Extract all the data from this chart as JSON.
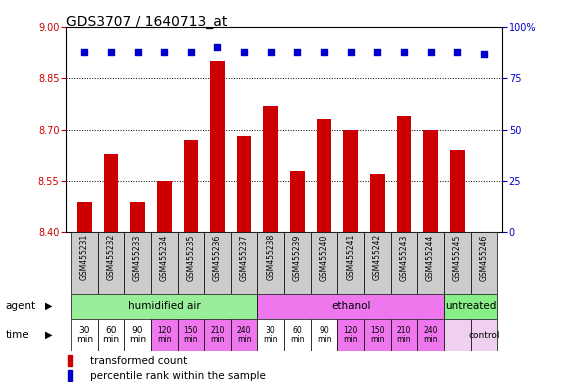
{
  "title": "GDS3707 / 1640713_at",
  "samples": [
    "GSM455231",
    "GSM455232",
    "GSM455233",
    "GSM455234",
    "GSM455235",
    "GSM455236",
    "GSM455237",
    "GSM455238",
    "GSM455239",
    "GSM455240",
    "GSM455241",
    "GSM455242",
    "GSM455243",
    "GSM455244",
    "GSM455245",
    "GSM455246"
  ],
  "bar_values": [
    8.49,
    8.63,
    8.49,
    8.55,
    8.67,
    8.9,
    8.68,
    8.77,
    8.58,
    8.73,
    8.7,
    8.57,
    8.74,
    8.7,
    8.64,
    8.4
  ],
  "percentile_values": [
    88,
    88,
    88,
    88,
    88,
    90,
    88,
    88,
    88,
    88,
    88,
    88,
    88,
    88,
    88,
    87
  ],
  "ylim": [
    8.4,
    9.0
  ],
  "y2lim": [
    0,
    100
  ],
  "yticks": [
    8.4,
    8.55,
    8.7,
    8.85,
    9.0
  ],
  "y2ticks": [
    0,
    25,
    50,
    75,
    100
  ],
  "bar_color": "#cc0000",
  "dot_color": "#0000cc",
  "grid_color": "#000000",
  "agent_groups": [
    {
      "label": "humidified air",
      "start": 0,
      "end": 7,
      "color": "#99ee99"
    },
    {
      "label": "ethanol",
      "start": 7,
      "end": 14,
      "color": "#ee77ee"
    },
    {
      "label": "untreated",
      "start": 14,
      "end": 16,
      "color": "#88ee88"
    }
  ],
  "time_colors": [
    "#ffffff",
    "#ffffff",
    "#ffffff",
    "#ee77ee",
    "#ee77ee",
    "#ee77ee",
    "#ee77ee",
    "#ffffff",
    "#ffffff",
    "#ffffff",
    "#ee77ee",
    "#ee77ee",
    "#ee77ee",
    "#ee77ee",
    "#f0d0f0",
    "#f0d0f0"
  ],
  "time_labels_list": [
    "30\nmin",
    "60\nmin",
    "90\nmin",
    "120\nmin",
    "150\nmin",
    "210\nmin",
    "240\nmin",
    "30\nmin",
    "60\nmin",
    "90\nmin",
    "120\nmin",
    "150\nmin",
    "210\nmin",
    "240\nmin",
    "",
    ""
  ],
  "legend_bar_label": "transformed count",
  "legend_dot_label": "percentile rank within the sample",
  "bar_color_legend": "#cc0000",
  "dot_color_legend": "#0000cc",
  "xlabel_color": "#cc0000",
  "y2label_color": "#0000cc",
  "title_fontsize": 10,
  "tick_fontsize": 7,
  "bar_width": 0.55,
  "sample_cell_color": "#cccccc"
}
